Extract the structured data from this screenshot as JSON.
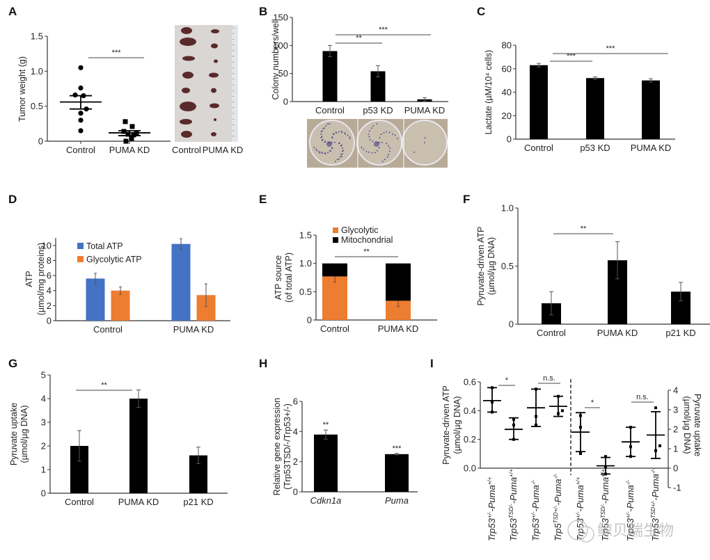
{
  "colors": {
    "bar_black": "#000000",
    "total_atp_blue": "#4472C4",
    "glycolytic_orange": "#ED7D31",
    "axis": "#333333",
    "photo_bg": "#d9d6d3",
    "tumor": "#5a2a2a",
    "dish_bg": "#c8bfae",
    "colony": "#4b3c8a"
  },
  "watermark": "鲸贝瑞生物",
  "chart_data": [
    {
      "panel": "A",
      "type": "scatter",
      "title": "",
      "xlabel": "",
      "ylabel": "Tumor weight (g)",
      "ylim": [
        0,
        1.5
      ],
      "yticks": [
        "0",
        "0.5",
        "1.0",
        "1.5"
      ],
      "categories": [
        "Control",
        "PUMA KD"
      ],
      "series": [
        {
          "name": "Control",
          "marker": "circle",
          "points": [
            1.05,
            0.76,
            0.66,
            0.65,
            0.46,
            0.4,
            0.3,
            0.15
          ],
          "mean": 0.56,
          "sem": [
            0.46,
            0.65
          ]
        },
        {
          "name": "PUMA KD",
          "marker": "square",
          "points": [
            0.28,
            0.21,
            0.14,
            0.11,
            0.1,
            0.09,
            0.04,
            0.0
          ],
          "mean": 0.12,
          "sem": [
            0.08,
            0.15
          ]
        }
      ],
      "significance": [
        {
          "from": "Control",
          "to": "PUMA KD",
          "label": "***"
        }
      ],
      "photo_labels": [
        "Control",
        "PUMA KD"
      ]
    },
    {
      "panel": "B",
      "type": "bar",
      "ylabel": "Colony numbers/well",
      "ylim": [
        0,
        150
      ],
      "yticks": [
        "0",
        "50",
        "100",
        "150"
      ],
      "categories": [
        "Control",
        "p53 KD",
        "PUMA KD"
      ],
      "values": [
        90,
        54,
        4
      ],
      "errors": [
        10,
        10,
        3
      ],
      "significance": [
        {
          "from": "Control",
          "to": "p53 KD",
          "label": "**"
        },
        {
          "from": "Control",
          "to": "PUMA KD",
          "label": "***"
        }
      ]
    },
    {
      "panel": "C",
      "type": "bar",
      "ylabel": "Lactate (µM/10⁴ cells)",
      "ylim": [
        0,
        80
      ],
      "yticks": [
        "0",
        "20",
        "40",
        "60",
        "80"
      ],
      "categories": [
        "Control",
        "p53 KD",
        "PUMA KD"
      ],
      "values": [
        63,
        52,
        50
      ],
      "errors": [
        1.5,
        1,
        1.5
      ],
      "significance": [
        {
          "from": "Control",
          "to": "p53 KD",
          "label": "***"
        },
        {
          "from": "Control",
          "to": "PUMA KD",
          "label": "***"
        }
      ]
    },
    {
      "panel": "D",
      "type": "bar",
      "ylabel": "ATP",
      "ylabel2": "(µmol/mg proteins)",
      "ylim": [
        0,
        11
      ],
      "yticks": [
        "0",
        "2",
        "4",
        "6",
        "8",
        "10"
      ],
      "categories": [
        "Control",
        "PUMA KD"
      ],
      "legend": "top-left",
      "series": [
        {
          "name": "Total ATP",
          "color": "#4472C4",
          "values": [
            5.6,
            10.2
          ],
          "errors": [
            0.7,
            0.7
          ]
        },
        {
          "name": "Glycolytic ATP",
          "color": "#ED7D31",
          "values": [
            4.0,
            3.4
          ],
          "errors": [
            0.5,
            1.5
          ]
        }
      ]
    },
    {
      "panel": "E",
      "type": "bar",
      "stacked": true,
      "ylabel": "ATP source",
      "ylabel2": "(of total ATP)",
      "ylim": [
        0,
        1.5
      ],
      "yticks": [
        "0",
        "0.5",
        "1.0",
        "1.5"
      ],
      "categories": [
        "Control",
        "PUMA KD"
      ],
      "legend": "top",
      "series": [
        {
          "name": "Glycolytic",
          "color": "#ED7D31",
          "values": [
            0.77,
            0.34
          ],
          "errors": [
            0.1,
            0.1
          ]
        },
        {
          "name": "Mitochondrial",
          "color": "#000000",
          "values": [
            0.23,
            0.66
          ]
        }
      ],
      "significance": [
        {
          "from": "Control",
          "to": "PUMA KD",
          "label": "**"
        }
      ]
    },
    {
      "panel": "F",
      "type": "bar",
      "ylabel": "Pyruvate-driven ATP",
      "ylabel2": "(µmol/µg DNA)",
      "ylim": [
        0,
        1.0
      ],
      "yticks": [
        "0",
        "0.5",
        "1.0"
      ],
      "categories": [
        "Control",
        "PUMA KD",
        "p21 KD"
      ],
      "values": [
        0.18,
        0.55,
        0.28
      ],
      "errors": [
        0.1,
        0.16,
        0.08
      ],
      "significance": [
        {
          "from": "Control",
          "to": "PUMA KD",
          "label": "**"
        }
      ]
    },
    {
      "panel": "G",
      "type": "bar",
      "ylabel": "Pyruvate uptake",
      "ylabel2": "(µmol/µg DNA)",
      "ylim": [
        0,
        5
      ],
      "yticks": [
        "0",
        "1",
        "2",
        "3",
        "4",
        "5"
      ],
      "categories": [
        "Control",
        "PUMA KD",
        "p21 KD"
      ],
      "values": [
        2.0,
        4.0,
        1.6
      ],
      "errors": [
        0.65,
        0.37,
        0.35
      ],
      "significance": [
        {
          "from": "Control",
          "to": "PUMA KD",
          "label": "**"
        }
      ]
    },
    {
      "panel": "H",
      "type": "bar",
      "ylabel": "Relative gene expression",
      "ylabel2": "(Trp53TSD/-/Trp53+/-)",
      "ylim": [
        0,
        6
      ],
      "yticks": [
        "0",
        "2",
        "4",
        "6"
      ],
      "categories": [
        "Cdkn1a",
        "Puma"
      ],
      "values": [
        3.8,
        2.5
      ],
      "errors": [
        0.3,
        0.05
      ],
      "bar_labels": [
        "**",
        "***"
      ]
    },
    {
      "panel": "I",
      "type": "scatter",
      "ylabel": "Pyruvate-driven ATP",
      "ylabel2": "(µmol/µg DNA)",
      "ylim": [
        0,
        0.6
      ],
      "yticks": [
        "0.0",
        "0.2",
        "0.4",
        "0.6"
      ],
      "ylabel_right": "Pyruvate uptake",
      "ylabel_right2": "(µmol/µg DNA)",
      "ylim_right": [
        -1,
        4
      ],
      "yticks_right": [
        "-1",
        "0",
        "1",
        "2",
        "3",
        "4"
      ],
      "categories": [
        {
          "base": "Trp53",
          "sup1": "+/-",
          "mid": "Puma",
          "sup2": "+/+"
        },
        {
          "base": "Trp53",
          "sup1": "TSD/-",
          "mid": "Puma",
          "sup2": "+/+"
        },
        {
          "base": "Trp53",
          "sup1": "+/-",
          "mid": "Puma",
          "sup2": "-/-"
        },
        {
          "base": "Trp5",
          "sup1": "TSD+/-",
          "mid": "Puma",
          "sup2": "-/-"
        },
        {
          "base": "Trp53",
          "sup1": "+/-",
          "mid": "Puma",
          "sup2": "+/+"
        },
        {
          "base": "Trp53",
          "sup1": "TSD/-",
          "mid": "Puma",
          "sup2": "+/+"
        },
        {
          "base": "Trp53",
          "sup1": "+/-",
          "mid": "Puma",
          "sup2": "-/-"
        },
        {
          "base": "Trp53",
          "sup1": "TSD+/-",
          "mid": "Puma",
          "sup2": "-/-"
        }
      ],
      "left_groups": [
        {
          "mean": 0.47,
          "range": [
            0.39,
            0.56
          ],
          "points": [
            0.56,
            0.46,
            0.39
          ]
        },
        {
          "mean": 0.27,
          "range": [
            0.2,
            0.35
          ],
          "points": [
            0.34,
            0.3,
            0.2
          ]
        },
        {
          "mean": 0.42,
          "range": [
            0.29,
            0.55
          ],
          "points": [
            0.55,
            0.36,
            0.3
          ]
        },
        {
          "mean": 0.43,
          "range": [
            0.36,
            0.5
          ],
          "points": [
            0.5,
            0.4,
            0.38
          ]
        }
      ],
      "right_groups": [
        {
          "mean": 1.85,
          "range": [
            0.85,
            2.85
          ],
          "points": [
            2.7,
            2.1,
            0.75
          ]
        },
        {
          "mean": 0.12,
          "range": [
            -0.3,
            0.55
          ],
          "points": [
            0.6,
            0.05,
            -0.3
          ]
        },
        {
          "mean": 1.35,
          "range": [
            0.6,
            2.1
          ],
          "points": [
            2.1,
            1.1,
            0.6
          ]
        },
        {
          "mean": 1.7,
          "range": [
            0.5,
            2.9
          ],
          "points": [
            3.1,
            1.15,
            0.9
          ]
        }
      ],
      "significance": [
        {
          "groups": [
            1,
            2
          ],
          "label": "*"
        },
        {
          "groups": [
            3,
            4
          ],
          "label": "n.s."
        },
        {
          "groups": [
            5,
            6
          ],
          "label": "*"
        },
        {
          "groups": [
            7,
            8
          ],
          "label": "n.s."
        }
      ]
    }
  ]
}
